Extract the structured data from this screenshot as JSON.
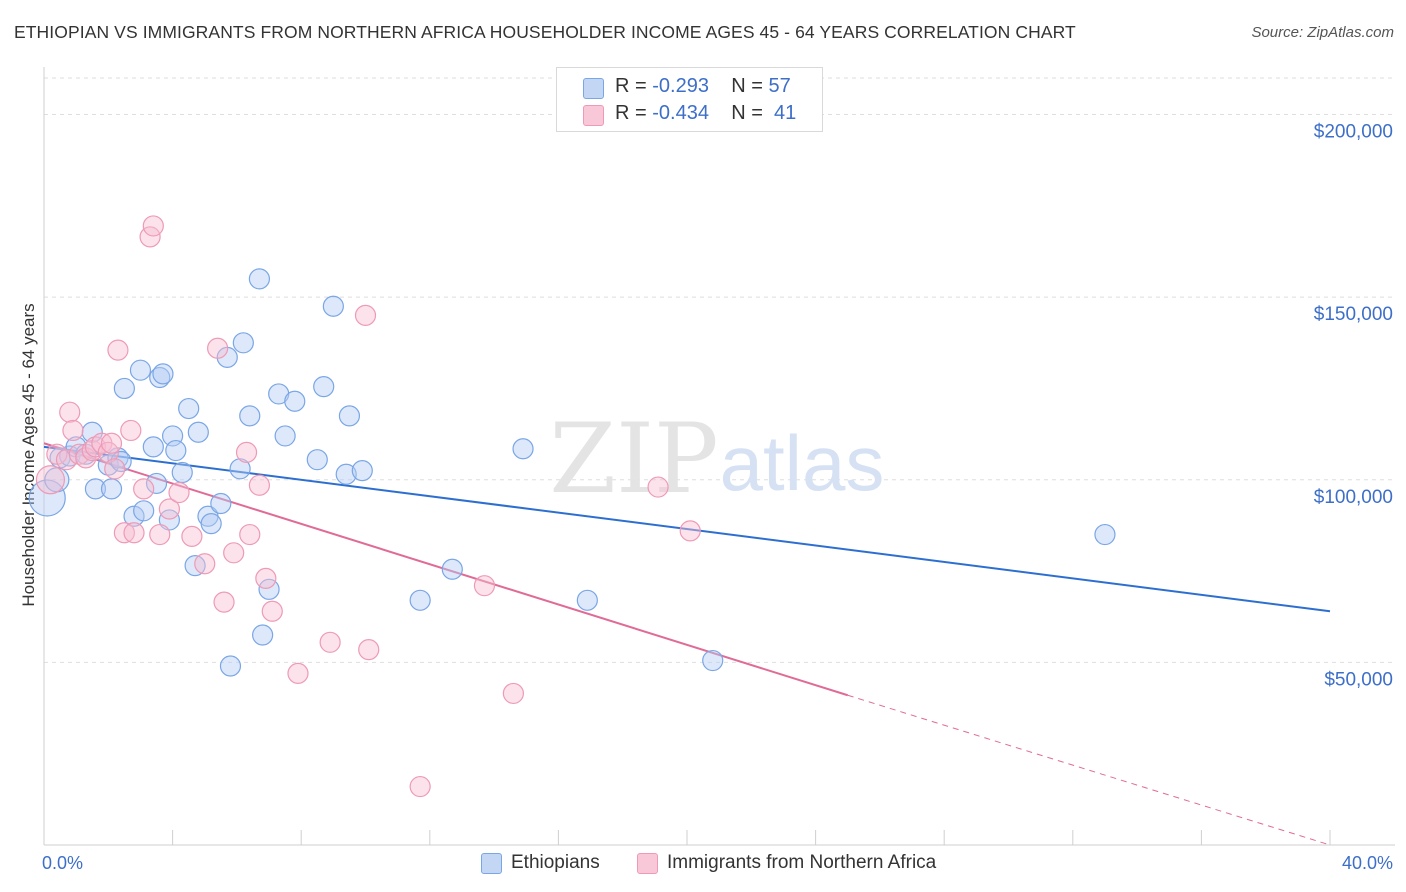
{
  "title": "ETHIOPIAN VS IMMIGRANTS FROM NORTHERN AFRICA HOUSEHOLDER INCOME AGES 45 - 64 YEARS CORRELATION CHART",
  "source": "Source: ZipAtlas.com",
  "watermark": {
    "zip": "ZIP",
    "atlas": "atlas"
  },
  "legend": {
    "rows": [
      {
        "r_label": "R =",
        "r_value": "-0.293",
        "n_label": "N =",
        "n_value": "57"
      },
      {
        "r_label": "R =",
        "r_value": "-0.434",
        "n_label": "N =",
        "n_value": "41"
      }
    ]
  },
  "chart_data": {
    "type": "scatter",
    "title": "ETHIOPIAN VS IMMIGRANTS FROM NORTHERN AFRICA HOUSEHOLDER INCOME AGES 45 - 64 YEARS CORRELATION CHART",
    "xlabel": "",
    "ylabel": "Householder Income Ages 45 - 64 years",
    "xlim": [
      0,
      40
    ],
    "ylim": [
      0,
      210000
    ],
    "x_tick_labels": [
      "0.0%",
      "40.0%"
    ],
    "y_ticks": [
      50000,
      100000,
      150000,
      200000
    ],
    "y_tick_labels": [
      "$50,000",
      "$100,000",
      "$150,000",
      "$200,000"
    ],
    "grid": true,
    "legend_position": "top-center",
    "colors": {
      "ethiopians": "#7aa6e6",
      "immigrants": "#ee9ab6",
      "ethiopians_line": "#2d6fd0",
      "immigrants_line": "#e06b96"
    },
    "series": [
      {
        "name": "Ethiopians",
        "trend": {
          "x": [
            0,
            40
          ],
          "y": [
            109000,
            64000
          ]
        },
        "points": [
          [
            0.1,
            95000,
            18
          ],
          [
            0.4,
            100000,
            12
          ],
          [
            0.5,
            106000,
            10
          ],
          [
            0.8,
            106500,
            10
          ],
          [
            1.0,
            109000,
            10
          ],
          [
            1.3,
            107000,
            10
          ],
          [
            1.5,
            113000,
            10
          ],
          [
            1.6,
            97500,
            10
          ],
          [
            2.0,
            104000,
            10
          ],
          [
            2.1,
            97500,
            10
          ],
          [
            2.3,
            106000,
            10
          ],
          [
            2.4,
            105000,
            10
          ],
          [
            2.5,
            125000,
            10
          ],
          [
            2.8,
            90000,
            10
          ],
          [
            3.0,
            130000,
            10
          ],
          [
            3.1,
            91500,
            10
          ],
          [
            3.4,
            109000,
            10
          ],
          [
            3.5,
            99000,
            10
          ],
          [
            3.6,
            128000,
            10
          ],
          [
            3.7,
            129000,
            10
          ],
          [
            3.9,
            89000,
            10
          ],
          [
            4.0,
            112000,
            10
          ],
          [
            4.1,
            108000,
            10
          ],
          [
            4.3,
            102000,
            10
          ],
          [
            4.5,
            119500,
            10
          ],
          [
            4.7,
            76500,
            10
          ],
          [
            4.8,
            113000,
            10
          ],
          [
            5.1,
            90000,
            10
          ],
          [
            5.2,
            88000,
            10
          ],
          [
            5.5,
            93500,
            10
          ],
          [
            5.7,
            133500,
            10
          ],
          [
            5.8,
            49000,
            10
          ],
          [
            6.1,
            103000,
            10
          ],
          [
            6.2,
            137500,
            10
          ],
          [
            6.4,
            117500,
            10
          ],
          [
            6.7,
            155000,
            10
          ],
          [
            6.8,
            57500,
            10
          ],
          [
            7.0,
            70000,
            10
          ],
          [
            7.3,
            123500,
            10
          ],
          [
            7.5,
            112000,
            10
          ],
          [
            7.8,
            121500,
            10
          ],
          [
            8.5,
            105500,
            10
          ],
          [
            8.7,
            125500,
            10
          ],
          [
            9.0,
            147500,
            10
          ],
          [
            9.4,
            101500,
            10
          ],
          [
            9.5,
            117500,
            10
          ],
          [
            9.9,
            102500,
            10
          ],
          [
            11.7,
            67000,
            10
          ],
          [
            12.7,
            75500,
            10
          ],
          [
            14.9,
            108500,
            10
          ],
          [
            16.9,
            67000,
            10
          ],
          [
            20.8,
            50500,
            10
          ],
          [
            33.0,
            85000,
            10
          ]
        ]
      },
      {
        "name": "Immigrants from Northern Africa",
        "trend": {
          "x": [
            0,
            25
          ],
          "y": [
            110000,
            41000
          ]
        },
        "trend_dashed": {
          "x": [
            25,
            40
          ],
          "y": [
            41000,
            0
          ]
        },
        "points": [
          [
            0.2,
            100000,
            14
          ],
          [
            0.4,
            107000,
            10
          ],
          [
            0.7,
            105500,
            10
          ],
          [
            0.8,
            118500,
            10
          ],
          [
            0.9,
            113500,
            10
          ],
          [
            1.1,
            107000,
            10
          ],
          [
            1.3,
            106000,
            10
          ],
          [
            1.5,
            108000,
            10
          ],
          [
            1.6,
            109000,
            10
          ],
          [
            1.8,
            110000,
            10
          ],
          [
            2.0,
            107500,
            10
          ],
          [
            2.1,
            110000,
            10
          ],
          [
            2.2,
            103000,
            10
          ],
          [
            2.3,
            135500,
            10
          ],
          [
            2.5,
            85500,
            10
          ],
          [
            2.7,
            113500,
            10
          ],
          [
            2.8,
            85500,
            10
          ],
          [
            3.1,
            97500,
            10
          ],
          [
            3.3,
            166500,
            10
          ],
          [
            3.4,
            169500,
            10
          ],
          [
            3.6,
            85000,
            10
          ],
          [
            3.9,
            92000,
            10
          ],
          [
            4.2,
            96500,
            10
          ],
          [
            4.6,
            84500,
            10
          ],
          [
            5.0,
            77000,
            10
          ],
          [
            5.4,
            136000,
            10
          ],
          [
            5.6,
            66500,
            10
          ],
          [
            5.9,
            80000,
            10
          ],
          [
            6.3,
            107500,
            10
          ],
          [
            6.4,
            85000,
            10
          ],
          [
            6.7,
            98500,
            10
          ],
          [
            6.9,
            73000,
            10
          ],
          [
            7.1,
            64000,
            10
          ],
          [
            7.9,
            47000,
            10
          ],
          [
            8.9,
            55500,
            10
          ],
          [
            10.0,
            145000,
            10
          ],
          [
            10.1,
            53500,
            10
          ],
          [
            11.7,
            16000,
            10
          ],
          [
            13.7,
            71000,
            10
          ],
          [
            14.6,
            41500,
            10
          ],
          [
            19.1,
            98000,
            10
          ],
          [
            20.1,
            86000,
            10
          ]
        ]
      }
    ]
  },
  "bottom_legend": {
    "ethiopians_label": "Ethiopians",
    "immigrants_label": "Immigrants from Northern Africa"
  }
}
